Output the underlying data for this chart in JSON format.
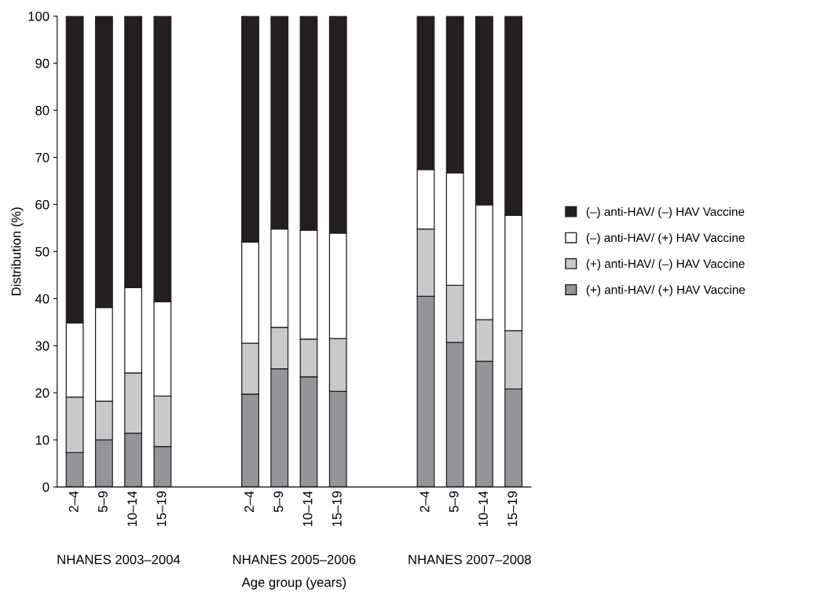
{
  "chart_data": {
    "type": "bar",
    "stacked": true,
    "xlabel": "Age group (years)",
    "ylabel": "Distribution (%)",
    "categories": [
      "2–4",
      "5–9",
      "10–14",
      "15–19",
      null,
      null,
      "2–4",
      "5–9",
      "10–14",
      "15–19",
      null,
      null,
      "2–4",
      "5–9",
      "10–14",
      "15–19"
    ],
    "series": [
      {
        "name": "(+) anti-HAV/ (+) HAV Vaccine",
        "color": "#939598",
        "values": [
          7.3,
          10.0,
          11.4,
          8.6,
          null,
          null,
          19.7,
          25.1,
          23.4,
          20.3,
          null,
          null,
          40.5,
          30.7,
          26.7,
          20.8
        ]
      },
      {
        "name": "(+) anti-HAV/ (–) HAV Vaccine",
        "color": "#c8c9cb",
        "values": [
          11.8,
          8.2,
          12.8,
          10.7,
          null,
          null,
          10.8,
          8.8,
          8.0,
          11.2,
          null,
          null,
          14.3,
          12.1,
          8.8,
          12.4
        ]
      },
      {
        "name": "(–) anti-HAV/ (+) HAV Vaccine",
        "color": "#ffffff",
        "values": [
          15.7,
          19.9,
          18.1,
          20.0,
          null,
          null,
          21.5,
          20.9,
          23.1,
          22.4,
          null,
          null,
          12.6,
          23.9,
          24.4,
          24.5
        ]
      },
      {
        "name": "(–) anti-HAV/ (–) HAV Vaccine",
        "color": "#231f20",
        "values": [
          65.2,
          61.9,
          57.7,
          60.7,
          null,
          null,
          48.0,
          45.2,
          45.5,
          46.1,
          null,
          null,
          32.6,
          33.3,
          40.1,
          42.3
        ]
      }
    ],
    "annotations": [
      "NHANES 2003–2004",
      "NHANES 2005–2006",
      "NHANES 2007–2008"
    ],
    "ylim": [
      0,
      100
    ],
    "yticks": [
      0,
      10,
      20,
      30,
      40,
      50,
      60,
      70,
      80,
      90,
      100
    ],
    "legend": "right",
    "grid": false
  }
}
